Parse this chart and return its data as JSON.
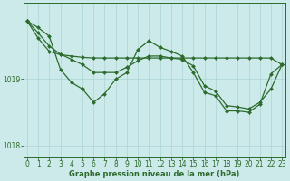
{
  "background_color": "#cceaea",
  "grid_color": "#aad4d4",
  "line_color": "#2d6b2d",
  "marker_color": "#2d6b2d",
  "xlabel": "Graphe pression niveau de la mer (hPa)",
  "ylim": [
    1017.82,
    1020.15
  ],
  "yticks": [
    1018,
    1019
  ],
  "xlim": [
    -0.3,
    23.3
  ],
  "xticks": [
    0,
    1,
    2,
    3,
    4,
    5,
    6,
    7,
    8,
    9,
    10,
    11,
    12,
    13,
    14,
    15,
    16,
    17,
    18,
    19,
    20,
    21,
    22,
    23
  ],
  "series": [
    [
      1019.88,
      1019.78,
      1019.65,
      1019.15,
      1018.95,
      1018.85,
      1018.65,
      1018.78,
      1019.0,
      1019.1,
      1019.45,
      1019.58,
      1019.48,
      1019.42,
      1019.35,
      1019.1,
      1018.8,
      1018.75,
      1018.52,
      1018.52,
      1018.5,
      1018.62,
      1019.08,
      1019.22
    ],
    [
      1019.88,
      1019.7,
      1019.5,
      1019.38,
      1019.3,
      1019.22,
      1019.1,
      1019.1,
      1019.1,
      1019.18,
      1019.28,
      1019.35,
      1019.35,
      1019.32,
      1019.3,
      1019.2,
      1018.9,
      1018.82,
      1018.6,
      1018.58,
      1018.55,
      1018.65,
      1018.85,
      1019.22
    ],
    [
      1019.88,
      1019.62,
      1019.42,
      1019.37,
      1019.35,
      1019.33,
      1019.32,
      1019.32,
      1019.32,
      1019.32,
      1019.32,
      1019.32,
      1019.32,
      1019.32,
      1019.32,
      1019.32,
      1019.32,
      1019.32,
      1019.32,
      1019.32,
      1019.32,
      1019.32,
      1019.32,
      1019.22
    ]
  ],
  "figsize": [
    3.2,
    2.0
  ],
  "dpi": 100,
  "tick_labelsize": 5.5,
  "xlabel_fontsize": 6.0,
  "linewidth": 0.9,
  "markersize": 2.0
}
